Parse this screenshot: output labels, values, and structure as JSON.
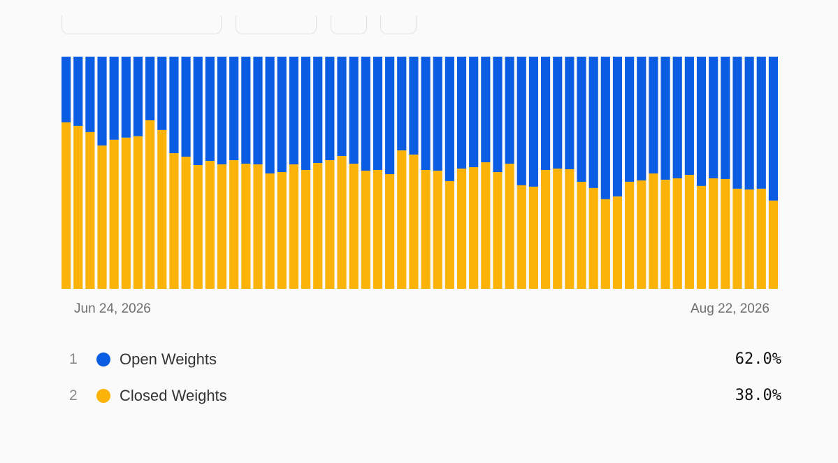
{
  "toolbar": {
    "pills": [
      "date-range",
      "granularity",
      "option-a",
      "option-b"
    ]
  },
  "colors": {
    "open": "#0a5ce3",
    "closed": "#fbb30a",
    "background": "#fafafa"
  },
  "axis": {
    "start_label": "Jun 24, 2026",
    "end_label": "Aug 22, 2026"
  },
  "legend": [
    {
      "rank": "1",
      "name": "Open Weights",
      "value": "62.0%",
      "color": "#0a5ce3"
    },
    {
      "rank": "2",
      "name": "Closed Weights",
      "value": "38.0%",
      "color": "#fbb30a"
    }
  ],
  "chart_data": {
    "type": "bar",
    "stacked": true,
    "normalized": true,
    "x_start": "Jun 24, 2026",
    "x_end": "Aug 22, 2026",
    "ylim": [
      0,
      100
    ],
    "series": [
      {
        "name": "Closed Weights",
        "color": "#fbb30a",
        "values": [
          71.7,
          70.2,
          67.5,
          61.7,
          64.2,
          65.1,
          65.7,
          72.6,
          68.4,
          58.4,
          56.9,
          53.3,
          55.1,
          53.6,
          55.4,
          53.9,
          53.6,
          49.7,
          50.3,
          53.6,
          51.2,
          54.2,
          55.4,
          57.2,
          53.9,
          50.9,
          51.2,
          49.4,
          59.6,
          57.8,
          51.2,
          50.9,
          46.4,
          51.8,
          52.4,
          54.5,
          50.3,
          53.9,
          44.6,
          44.0,
          51.2,
          51.8,
          51.5,
          46.1,
          43.4,
          38.6,
          39.8,
          46.1,
          46.7,
          49.7,
          47.0,
          47.6,
          49.1,
          44.3,
          47.6,
          47.3,
          43.1,
          42.8,
          43.1,
          38.0
        ]
      },
      {
        "name": "Open Weights",
        "color": "#0a5ce3",
        "values": [
          28.3,
          29.8,
          32.5,
          38.3,
          35.8,
          34.9,
          34.3,
          27.4,
          31.6,
          41.6,
          43.1,
          46.7,
          44.9,
          46.4,
          44.6,
          46.1,
          46.4,
          50.3,
          49.7,
          46.4,
          48.8,
          45.8,
          44.6,
          42.8,
          46.1,
          49.1,
          48.8,
          50.6,
          40.4,
          42.2,
          48.8,
          49.1,
          53.6,
          48.2,
          47.6,
          45.5,
          49.7,
          46.1,
          55.4,
          56.0,
          48.8,
          48.2,
          48.5,
          53.9,
          56.6,
          61.4,
          60.2,
          53.9,
          53.3,
          50.3,
          53.0,
          52.4,
          50.9,
          55.7,
          52.4,
          52.7,
          56.9,
          57.2,
          56.9,
          62.0
        ]
      }
    ],
    "summary": {
      "Open Weights": 62.0,
      "Closed Weights": 38.0
    }
  }
}
